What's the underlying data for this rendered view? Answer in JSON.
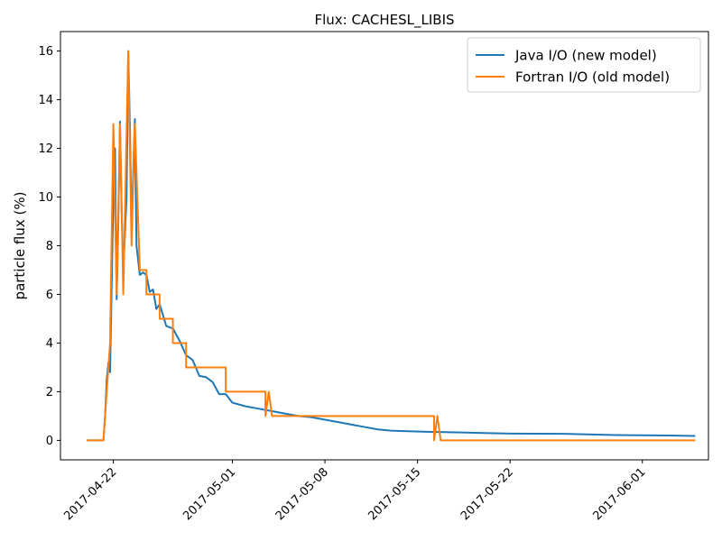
{
  "chart_data": {
    "type": "line",
    "title": "Flux: CACHESL_LIBIS",
    "xlabel": "",
    "ylabel": "particle flux (%)",
    "x_axis_type": "date",
    "xlim": [
      "2017-04-18",
      "2017-06-06"
    ],
    "ylim": [
      -0.8,
      16.8
    ],
    "yticks": [
      0,
      2,
      4,
      6,
      8,
      10,
      12,
      14,
      16
    ],
    "xticks": [
      "2017-04-22",
      "2017-05-01",
      "2017-05-08",
      "2017-05-15",
      "2017-05-22",
      "2017-06-01"
    ],
    "x_tick_rotation": 45,
    "grid": false,
    "legend_position": "top-right",
    "series": [
      {
        "name": "Java I/O (new model)",
        "color": "#1f77b4",
        "points": [
          [
            "2017-04-20 00:00",
            0.0
          ],
          [
            "2017-04-21 06:00",
            0.0
          ],
          [
            "2017-04-21 09:00",
            1.0
          ],
          [
            "2017-04-21 12:00",
            2.5
          ],
          [
            "2017-04-21 15:00",
            3.2
          ],
          [
            "2017-04-21 18:00",
            2.8
          ],
          [
            "2017-04-22 00:00",
            10.0
          ],
          [
            "2017-04-22 03:00",
            12.0
          ],
          [
            "2017-04-22 06:00",
            5.8
          ],
          [
            "2017-04-22 09:00",
            9.0
          ],
          [
            "2017-04-22 12:00",
            13.1
          ],
          [
            "2017-04-22 15:00",
            9.5
          ],
          [
            "2017-04-22 18:00",
            7.0
          ],
          [
            "2017-04-23 00:00",
            10.0
          ],
          [
            "2017-04-23 03:00",
            16.0
          ],
          [
            "2017-04-23 06:00",
            13.0
          ],
          [
            "2017-04-23 09:00",
            8.5
          ],
          [
            "2017-04-23 12:00",
            11.0
          ],
          [
            "2017-04-23 15:00",
            13.2
          ],
          [
            "2017-04-23 18:00",
            8.0
          ],
          [
            "2017-04-24 00:00",
            6.8
          ],
          [
            "2017-04-24 06:00",
            6.9
          ],
          [
            "2017-04-24 12:00",
            6.8
          ],
          [
            "2017-04-24 18:00",
            6.1
          ],
          [
            "2017-04-25 00:00",
            6.2
          ],
          [
            "2017-04-25 06:00",
            5.4
          ],
          [
            "2017-04-25 12:00",
            5.6
          ],
          [
            "2017-04-26 00:00",
            4.7
          ],
          [
            "2017-04-26 12:00",
            4.6
          ],
          [
            "2017-04-27 00:00",
            4.1
          ],
          [
            "2017-04-27 12:00",
            3.5
          ],
          [
            "2017-04-28 00:00",
            3.3
          ],
          [
            "2017-04-28 12:00",
            2.65
          ],
          [
            "2017-04-29 00:00",
            2.6
          ],
          [
            "2017-04-29 12:00",
            2.4
          ],
          [
            "2017-04-30 00:00",
            1.9
          ],
          [
            "2017-04-30 12:00",
            1.9
          ],
          [
            "2017-05-01 00:00",
            1.55
          ],
          [
            "2017-05-02 00:00",
            1.4
          ],
          [
            "2017-05-03 00:00",
            1.3
          ],
          [
            "2017-05-04 00:00",
            1.2
          ],
          [
            "2017-05-05 00:00",
            1.1
          ],
          [
            "2017-05-06 00:00",
            1.0
          ],
          [
            "2017-05-07 00:00",
            0.95
          ],
          [
            "2017-05-08 00:00",
            0.85
          ],
          [
            "2017-05-09 00:00",
            0.75
          ],
          [
            "2017-05-10 00:00",
            0.65
          ],
          [
            "2017-05-11 00:00",
            0.55
          ],
          [
            "2017-05-12 00:00",
            0.45
          ],
          [
            "2017-05-13 00:00",
            0.4
          ],
          [
            "2017-05-14 00:00",
            0.38
          ],
          [
            "2017-05-16 00:00",
            0.35
          ],
          [
            "2017-05-18 00:00",
            0.33
          ],
          [
            "2017-05-20 00:00",
            0.3
          ],
          [
            "2017-05-22 00:00",
            0.28
          ],
          [
            "2017-05-26 00:00",
            0.27
          ],
          [
            "2017-05-30 00:00",
            0.22
          ],
          [
            "2017-06-03 00:00",
            0.2
          ],
          [
            "2017-06-05 00:00",
            0.18
          ]
        ]
      },
      {
        "name": "Fortran I/O (old model)",
        "color": "#ff7f0e",
        "points": [
          [
            "2017-04-20 00:00",
            0.0
          ],
          [
            "2017-04-21 06:00",
            0.0
          ],
          [
            "2017-04-21 12:00",
            2.0
          ],
          [
            "2017-04-21 18:00",
            4.0
          ],
          [
            "2017-04-22 00:00",
            13.0
          ],
          [
            "2017-04-22 06:00",
            6.0
          ],
          [
            "2017-04-22 12:00",
            13.0
          ],
          [
            "2017-04-22 18:00",
            6.0
          ],
          [
            "2017-04-23 03:00",
            16.0
          ],
          [
            "2017-04-23 09:00",
            8.0
          ],
          [
            "2017-04-23 15:00",
            13.0
          ],
          [
            "2017-04-24 00:00",
            7.0
          ],
          [
            "2017-04-24 12:00",
            7.0
          ],
          [
            "2017-04-24 12:01",
            6.0
          ],
          [
            "2017-04-25 12:00",
            6.0
          ],
          [
            "2017-04-25 12:01",
            5.0
          ],
          [
            "2017-04-26 12:00",
            5.0
          ],
          [
            "2017-04-26 12:01",
            4.0
          ],
          [
            "2017-04-27 12:00",
            4.0
          ],
          [
            "2017-04-27 12:01",
            3.0
          ],
          [
            "2017-04-30 12:00",
            3.0
          ],
          [
            "2017-04-30 12:01",
            2.0
          ],
          [
            "2017-05-03 12:00",
            2.0
          ],
          [
            "2017-05-03 12:01",
            1.0
          ],
          [
            "2017-05-03 18:00",
            2.0
          ],
          [
            "2017-05-04 00:00",
            1.0
          ],
          [
            "2017-05-16 06:00",
            1.0
          ],
          [
            "2017-05-16 06:01",
            0.0
          ],
          [
            "2017-05-16 12:00",
            1.0
          ],
          [
            "2017-05-16 18:00",
            0.0
          ],
          [
            "2017-06-05 00:00",
            0.0
          ]
        ]
      }
    ]
  }
}
